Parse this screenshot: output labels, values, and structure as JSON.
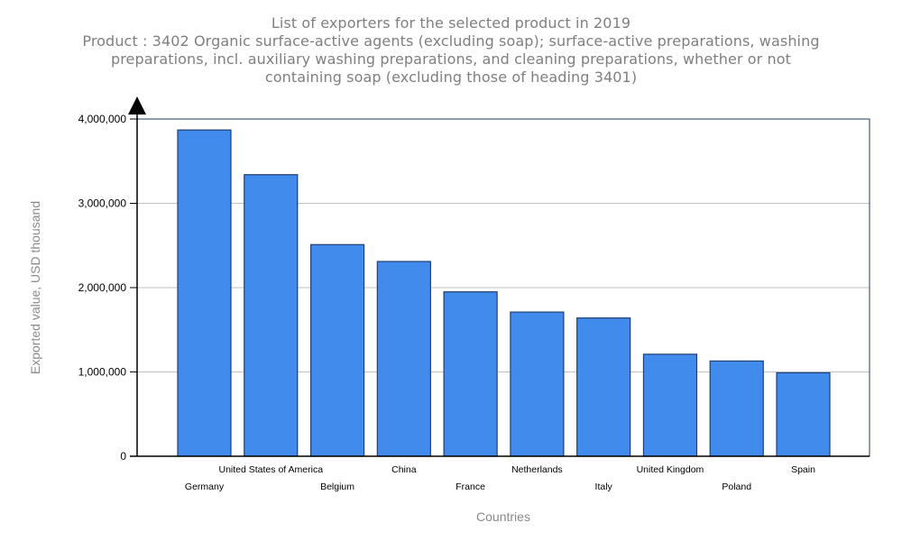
{
  "chart_data": {
    "type": "bar",
    "title": "List of exporters for the selected product in 2019",
    "subtitle_lines": [
      "Product : 3402 Organic surface-active agents (excluding soap); surface-active preparations, washing",
      "preparations, incl. auxiliary washing preparations, and cleaning preparations, whether or not",
      "containing soap (excluding those of heading 3401)"
    ],
    "xlabel": "Countries",
    "ylabel": "Exported value, USD thousand",
    "ylim": [
      0,
      4000000
    ],
    "yticks": [
      0,
      1000000,
      2000000,
      3000000,
      4000000
    ],
    "ytick_labels": [
      "0",
      "1,000,000",
      "2,000,000",
      "3,000,000",
      "4,000,000"
    ],
    "grid": true,
    "categories": [
      "Germany",
      "United States of America",
      "Belgium",
      "China",
      "France",
      "Netherlands",
      "Italy",
      "United Kingdom",
      "Poland",
      "Spain"
    ],
    "values": [
      3870000,
      3340000,
      2510000,
      2310000,
      1950000,
      1710000,
      1640000,
      1210000,
      1130000,
      990000
    ],
    "bar_color": "#418bed",
    "bar_edge_color": "#1f3f73"
  }
}
